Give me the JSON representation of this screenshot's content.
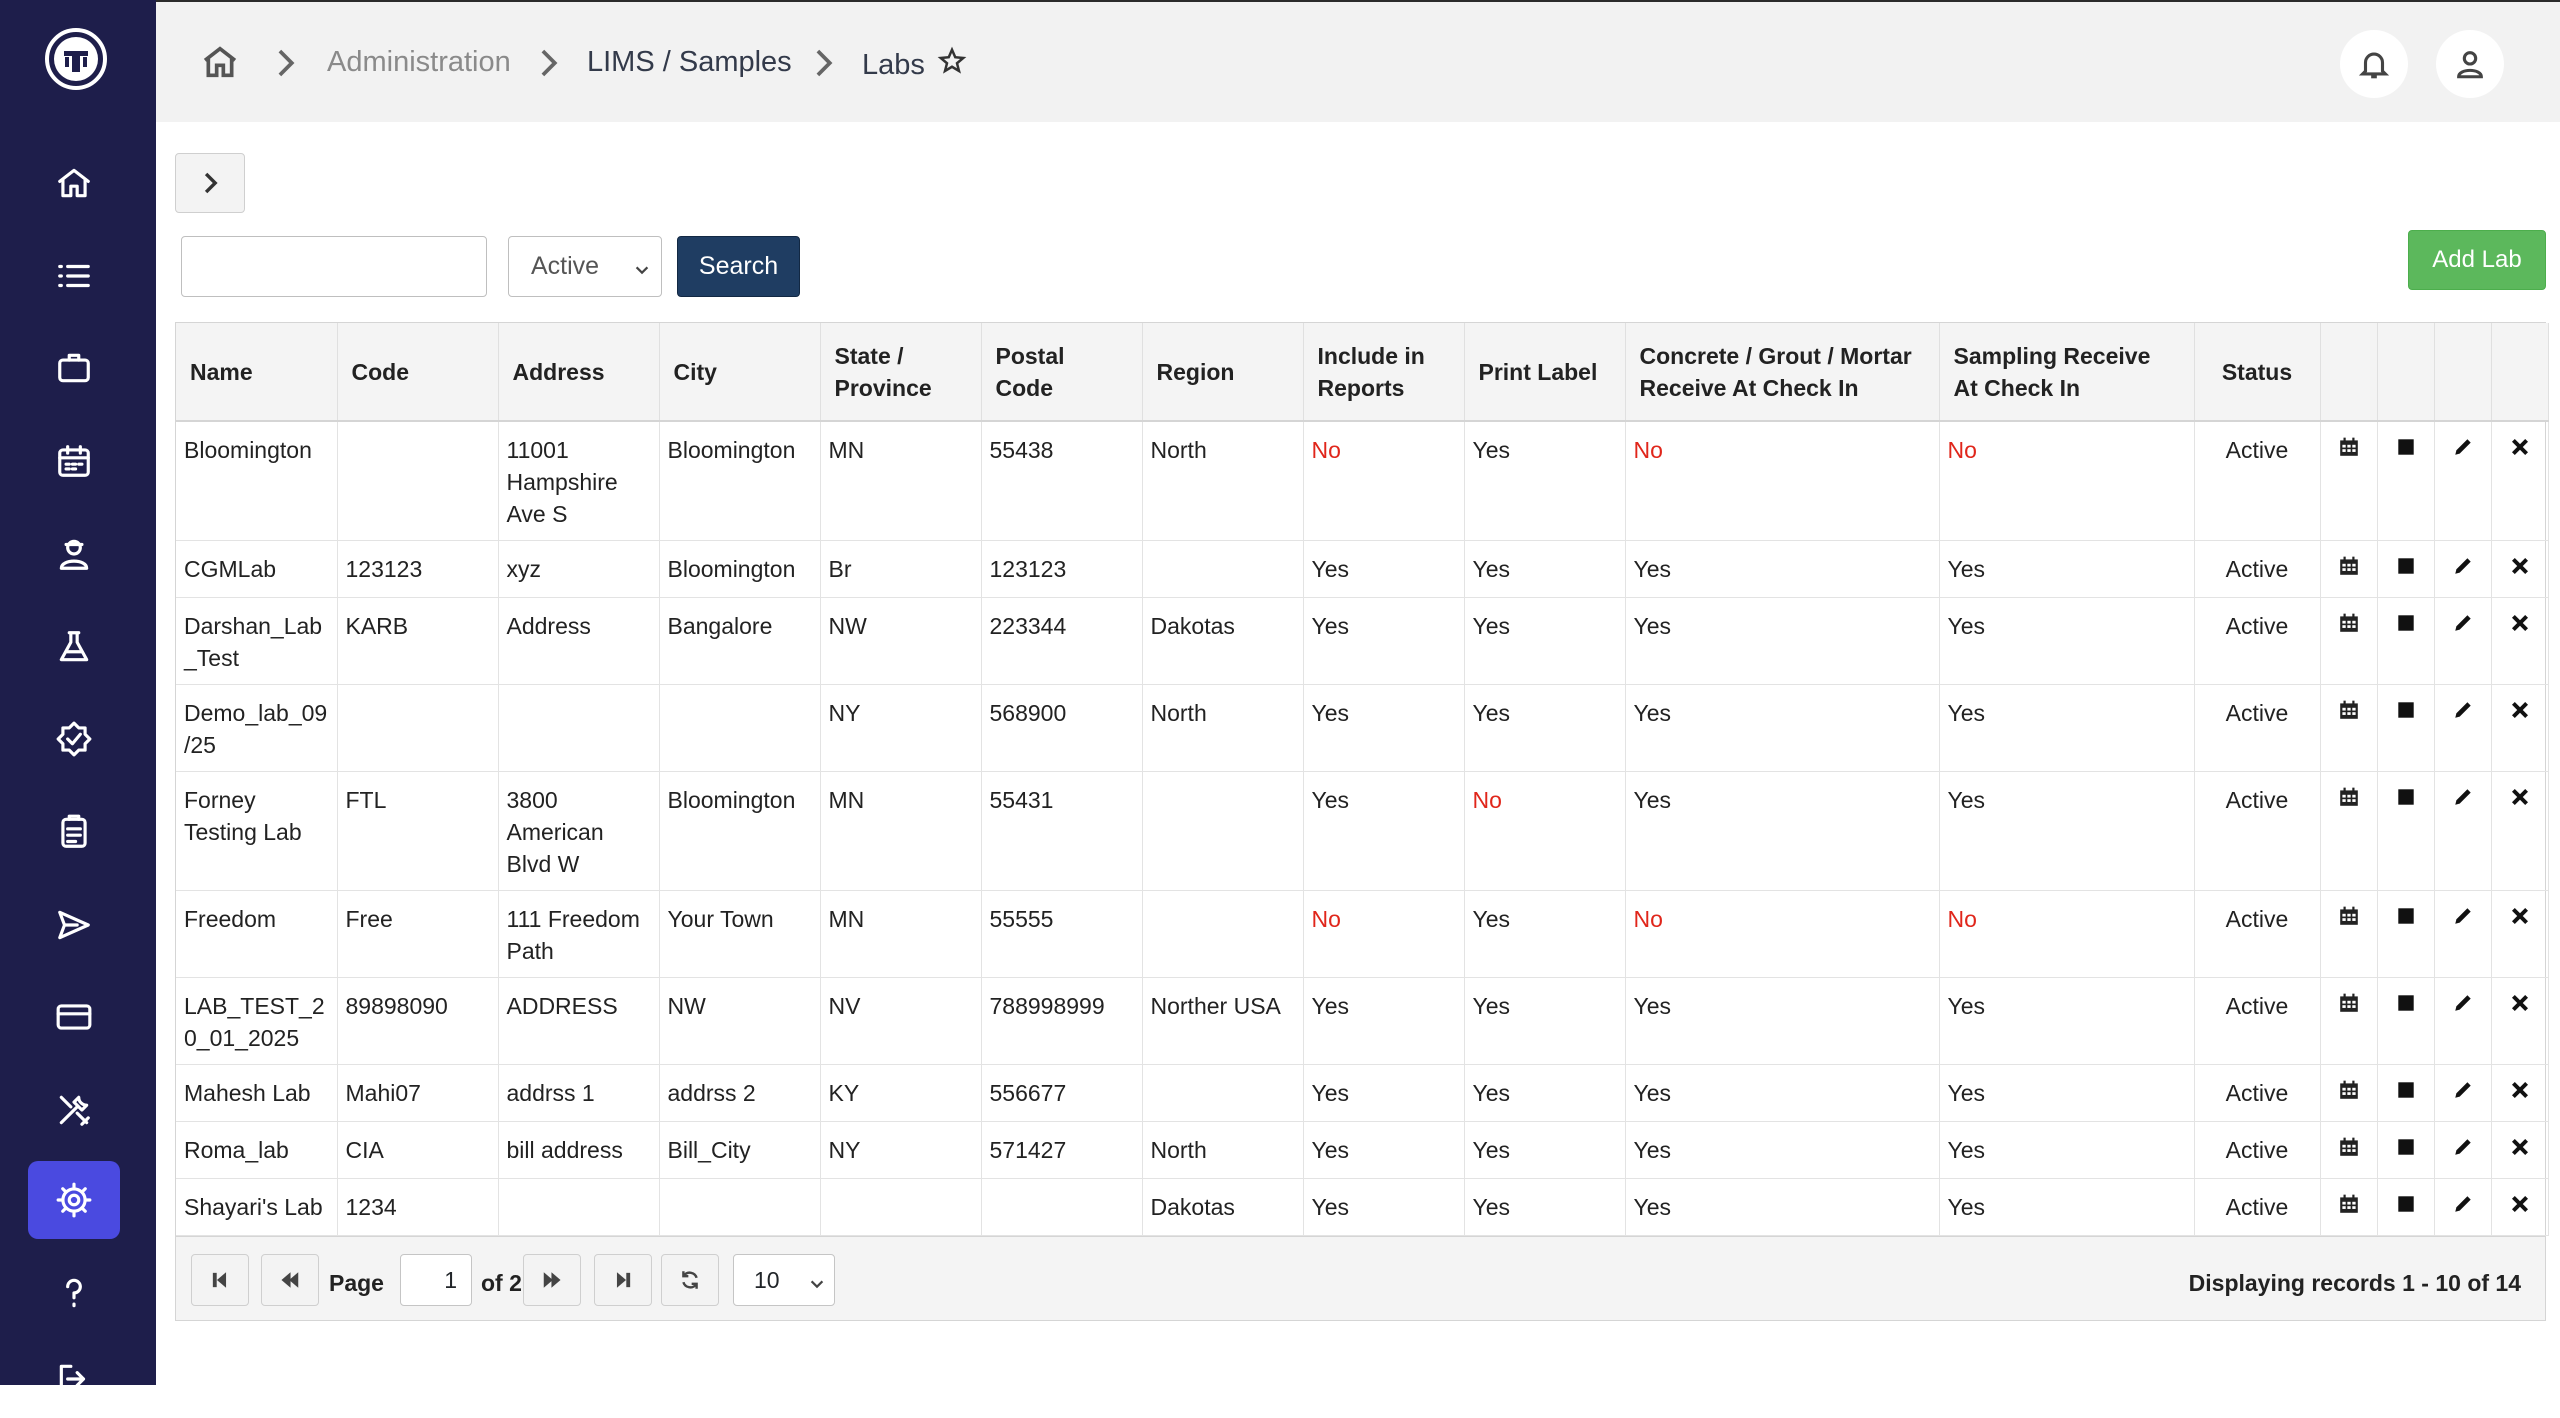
{
  "sidebar": {
    "logo_icon": "company-logo-icon",
    "items": [
      {
        "icon": "home-icon"
      },
      {
        "icon": "list-icon"
      },
      {
        "icon": "briefcase-icon"
      },
      {
        "icon": "calendar-icon"
      },
      {
        "icon": "user-icon"
      },
      {
        "icon": "flask-icon"
      },
      {
        "icon": "badge-check-icon"
      },
      {
        "icon": "clipboard-icon"
      },
      {
        "icon": "send-icon"
      },
      {
        "icon": "card-icon"
      },
      {
        "icon": "tools-icon"
      },
      {
        "icon": "gear-icon",
        "active": true
      },
      {
        "icon": "help-icon"
      },
      {
        "icon": "logout-icon"
      }
    ]
  },
  "breadcrumb": {
    "items": [
      "Administration",
      "LIMS / Samples",
      "Labs"
    ]
  },
  "controls": {
    "search_value": "",
    "status_value": "Active",
    "search_label": "Search",
    "add_label": "Add Lab"
  },
  "table": {
    "columns": [
      "Name",
      "Code",
      "Address",
      "City",
      "State / Province",
      "Postal Code",
      "Region",
      "Include in Reports",
      "Print Label",
      "Concrete / Grout / Mortar Receive At Check In",
      "Sampling Receive At Check In",
      "Status"
    ],
    "rows": [
      [
        "Bloomington",
        "",
        "11001 Hampshire Ave S",
        "Bloomington",
        "MN",
        "55438",
        "North",
        "No",
        "Yes",
        "No",
        "No",
        "Active"
      ],
      [
        "CGMLab",
        "123123",
        "xyz",
        "Bloomington",
        "Br",
        "123123",
        "",
        "Yes",
        "Yes",
        "Yes",
        "Yes",
        "Active"
      ],
      [
        "Darshan_Lab_Test",
        "KARB",
        "Address",
        "Bangalore",
        "NW",
        "223344",
        "Dakotas",
        "Yes",
        "Yes",
        "Yes",
        "Yes",
        "Active"
      ],
      [
        "Demo_lab_09/25",
        "",
        "",
        "",
        "NY",
        "568900",
        "North",
        "Yes",
        "Yes",
        "Yes",
        "Yes",
        "Active"
      ],
      [
        "Forney Testing Lab",
        "FTL",
        "3800 American Blvd W",
        "Bloomington",
        "MN",
        "55431",
        "",
        "Yes",
        "No",
        "Yes",
        "Yes",
        "Active"
      ],
      [
        "Freedom",
        "Free",
        "111 Freedom Path",
        "Your Town",
        "MN",
        "55555",
        "",
        "No",
        "Yes",
        "No",
        "No",
        "Active"
      ],
      [
        "LAB_TEST_20_01_2025",
        "89898090",
        "ADDRESS",
        "NW",
        "NV",
        "788998999",
        "Norther USA",
        "Yes",
        "Yes",
        "Yes",
        "Yes",
        "Active"
      ],
      [
        "Mahesh Lab",
        "Mahi07",
        "addrss 1",
        "addrss 2",
        "KY",
        "556677",
        "",
        "Yes",
        "Yes",
        "Yes",
        "Yes",
        "Active"
      ],
      [
        "Roma_lab",
        "CIA",
        "bill address",
        "Bill_City",
        "NY",
        "571427",
        "North",
        "Yes",
        "Yes",
        "Yes",
        "Yes",
        "Active"
      ],
      [
        "Shayari's Lab",
        "1234",
        "",
        "",
        "",
        "",
        "Dakotas",
        "Yes",
        "Yes",
        "Yes",
        "Yes",
        "Active"
      ]
    ],
    "row_action_icons": [
      "calendar-icon",
      "square-icon",
      "pencil-icon",
      "close-icon"
    ],
    "no_color": "#e0261b"
  },
  "pager": {
    "page_label": "Page",
    "page_value": "1",
    "of_label": "of 2",
    "page_size": "10",
    "records": "Displaying records  1 - 10  of  14"
  },
  "colors": {
    "sidebar_bg": "#1e1e4b",
    "sidebar_active": "#4a4ae0",
    "search_button": "#1f3d62",
    "add_button": "#5cb85c"
  }
}
